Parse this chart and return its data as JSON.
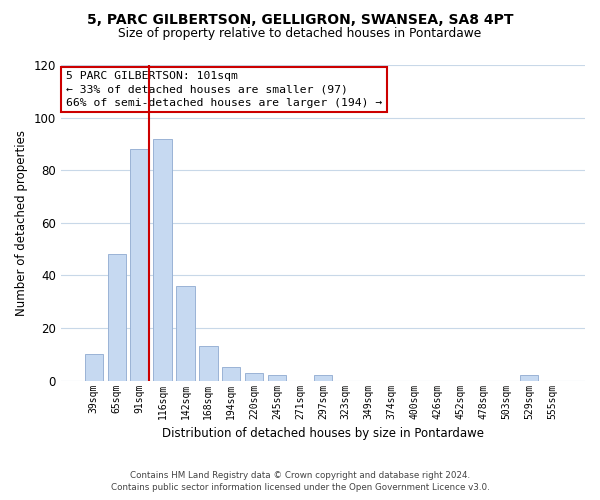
{
  "title1": "5, PARC GILBERTSON, GELLIGRON, SWANSEA, SA8 4PT",
  "title2": "Size of property relative to detached houses in Pontardawe",
  "xlabel": "Distribution of detached houses by size in Pontardawe",
  "ylabel": "Number of detached properties",
  "bar_labels": [
    "39sqm",
    "65sqm",
    "91sqm",
    "116sqm",
    "142sqm",
    "168sqm",
    "194sqm",
    "220sqm",
    "245sqm",
    "271sqm",
    "297sqm",
    "323sqm",
    "349sqm",
    "374sqm",
    "400sqm",
    "426sqm",
    "452sqm",
    "478sqm",
    "503sqm",
    "529sqm",
    "555sqm"
  ],
  "bar_values": [
    10,
    48,
    88,
    92,
    36,
    13,
    5,
    3,
    2,
    0,
    2,
    0,
    0,
    0,
    0,
    0,
    0,
    0,
    0,
    2,
    0
  ],
  "bar_color": "#c6d9f1",
  "bar_edge_color": "#9ab3d5",
  "vline_color": "#cc0000",
  "vline_pos": 2.4,
  "ylim": [
    0,
    120
  ],
  "yticks": [
    0,
    20,
    40,
    60,
    80,
    100,
    120
  ],
  "ann_line1": "5 PARC GILBERTSON: 101sqm",
  "ann_line2": "← 33% of detached houses are smaller (97)",
  "ann_line3": "66% of semi-detached houses are larger (194) →",
  "annotation_box_color": "#ffffff",
  "annotation_box_edge_color": "#cc0000",
  "footer_line1": "Contains HM Land Registry data © Crown copyright and database right 2024.",
  "footer_line2": "Contains public sector information licensed under the Open Government Licence v3.0.",
  "background_color": "#ffffff",
  "grid_color": "#c8d8e8"
}
